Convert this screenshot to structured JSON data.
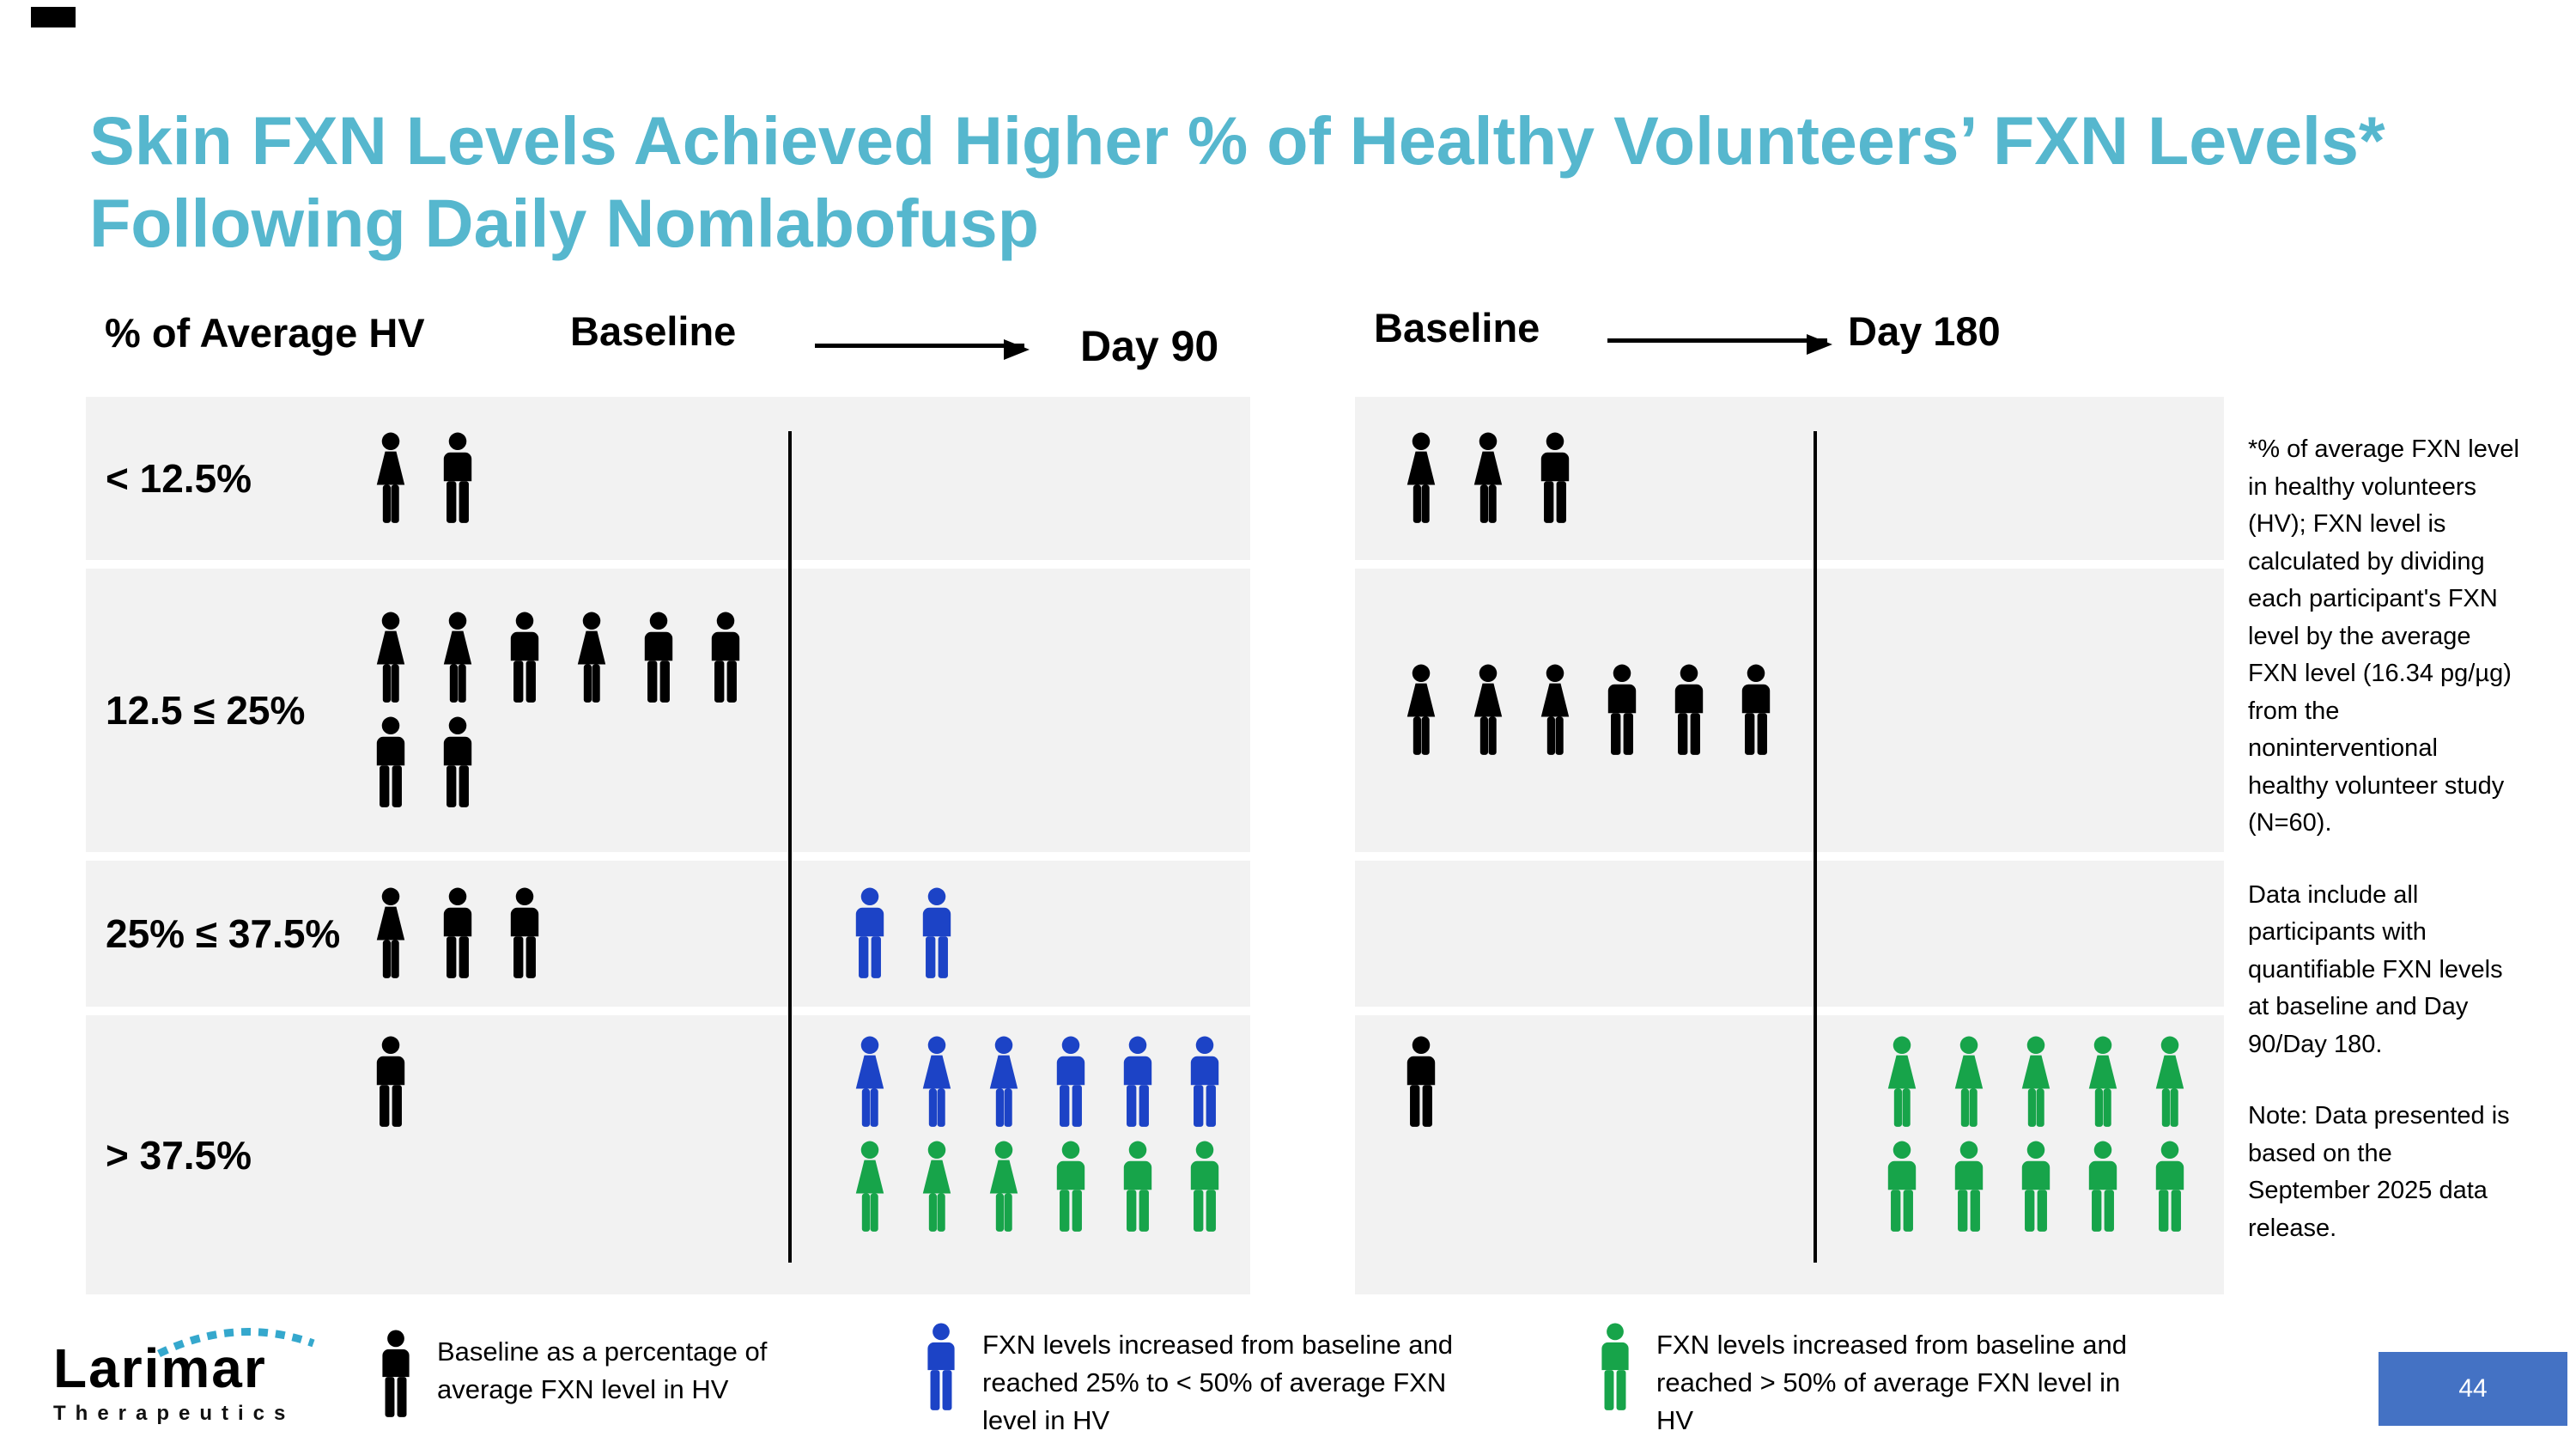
{
  "slide": {
    "title_line1": "Skin FXN Levels Achieved Higher % of Healthy Volunteers’ FXN Levels*",
    "title_line2": "Following Daily Nomlabofusp",
    "page_number": "44"
  },
  "theme": {
    "title_color": "#56b7ce",
    "row_bg": "#f2f2f2",
    "page_box_bg": "#4472c4",
    "logo_accent": "#35a8cd"
  },
  "chart_data": {
    "type": "pictogram",
    "ylabel": "% of Average HV",
    "row_labels": [
      "< 12.5%",
      "12.5 ≤ 25%",
      "25% ≤ 37.5%",
      "> 37.5%"
    ],
    "colors": {
      "black": "#000000",
      "blue": "#1c43c6",
      "green": "#17a44a"
    },
    "panels": [
      {
        "start_label": "Baseline",
        "end_label": "Day 90",
        "counts": {
          "baseline": [
            2,
            8,
            3,
            1
          ],
          "end": [
            0,
            0,
            2,
            12
          ]
        },
        "rows": [
          {
            "band": "< 12.5%",
            "baseline": [
              "F-black",
              "M-black"
            ],
            "end": []
          },
          {
            "band": "12.5 ≤ 25%",
            "baseline": [
              "F-black",
              "F-black",
              "M-black",
              "F-black",
              "M-black",
              "M-black",
              "M-black",
              "M-black"
            ],
            "end": []
          },
          {
            "band": "25% ≤ 37.5%",
            "baseline": [
              "F-black",
              "M-black",
              "M-black"
            ],
            "end": [
              "M-blue",
              "M-blue"
            ]
          },
          {
            "band": "> 37.5%",
            "baseline": [
              "M-black"
            ],
            "end": [
              "F-blue",
              "F-blue",
              "F-blue",
              "M-blue",
              "M-blue",
              "M-blue",
              "F-green",
              "F-green",
              "F-green",
              "M-green",
              "M-green",
              "M-green"
            ]
          }
        ]
      },
      {
        "start_label": "Baseline",
        "end_label": "Day 180",
        "counts": {
          "baseline": [
            3,
            6,
            0,
            1
          ],
          "end": [
            0,
            0,
            0,
            10
          ]
        },
        "rows": [
          {
            "band": "< 12.5%",
            "baseline": [
              "F-black",
              "F-black",
              "M-black"
            ],
            "end": []
          },
          {
            "band": "12.5 ≤ 25%",
            "baseline": [
              "F-black",
              "F-black",
              "F-black",
              "M-black",
              "M-black",
              "M-black"
            ],
            "end": []
          },
          {
            "band": "25% ≤ 37.5%",
            "baseline": [],
            "end": []
          },
          {
            "band": "> 37.5%",
            "baseline": [
              "M-black"
            ],
            "end": [
              "F-green",
              "F-green",
              "F-green",
              "F-green",
              "F-green",
              "M-green",
              "M-green",
              "M-green",
              "M-green",
              "M-green"
            ]
          }
        ]
      }
    ]
  },
  "footnote": {
    "para1": "*% of average FXN level in healthy volunteers (HV); FXN level is calculated by dividing each participant's FXN level by the average FXN level (16.34 pg/µg) from the noninterventional healthy volunteer study (N=60).",
    "para2": "Data include all participants with quantifiable FXN levels at baseline and Day 90/Day 180.",
    "para3": "Note: Data presented is based on the September 2025 data release."
  },
  "legend": {
    "items": [
      {
        "color": "black",
        "label": "Baseline as a percentage of average FXN level in HV"
      },
      {
        "color": "blue",
        "label": "FXN levels increased from baseline and reached 25% to < 50% of average FXN level in HV"
      },
      {
        "color": "green",
        "label": "FXN levels increased from baseline and reached > 50% of average FXN level in HV"
      }
    ]
  },
  "logo": {
    "brand": "Larimar",
    "sub": "Therapeutics"
  }
}
